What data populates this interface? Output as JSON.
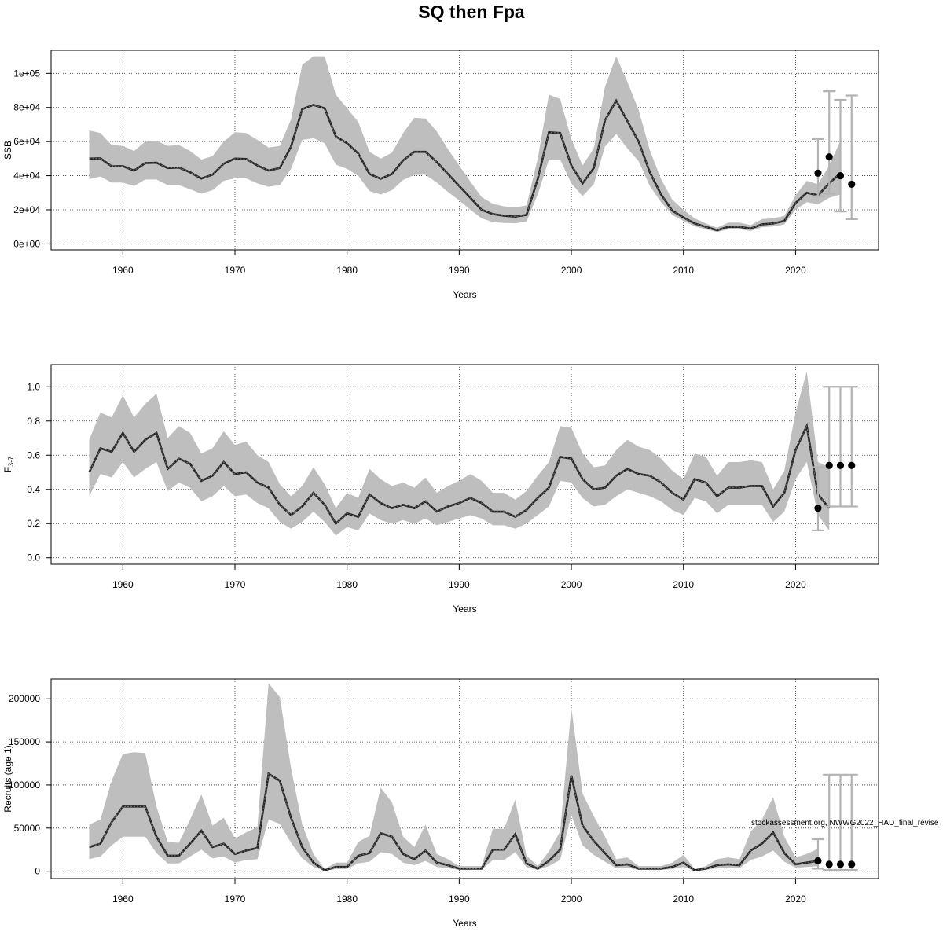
{
  "title": "SQ then Fpa",
  "watermark": "stockassessment.org, NWWG2022_HAD_final_revise",
  "colors": {
    "band": "#bebebe",
    "line": "#222222",
    "whisker": "#b3b3b3",
    "point": "#000000",
    "grid": "#333333"
  },
  "chart_data": [
    {
      "type": "line",
      "id": "ssb",
      "title": "SQ then Fpa",
      "xlabel": "Years",
      "ylabel": "SSB",
      "xlim": [
        1953.6,
        2027.4
      ],
      "ylim": [
        -3500,
        113500
      ],
      "xticks": [
        1960,
        1970,
        1980,
        1990,
        2000,
        2010,
        2020
      ],
      "yticks": [
        0,
        20000,
        40000,
        60000,
        80000,
        100000
      ],
      "ytick_labels": [
        "0e+00",
        "2e+04",
        "4e+04",
        "6e+04",
        "8e+04",
        "1e+05"
      ],
      "years_start": 1957,
      "estimate": [
        50000,
        50200,
        45500,
        45600,
        43000,
        47400,
        47600,
        44500,
        44800,
        42000,
        38300,
        40600,
        47000,
        50000,
        49800,
        46000,
        43000,
        44500,
        57000,
        79000,
        81500,
        79500,
        63000,
        59000,
        53000,
        41000,
        38200,
        41000,
        49000,
        54000,
        54000,
        48000,
        41000,
        34000,
        27000,
        20000,
        17500,
        16500,
        16000,
        17000,
        38000,
        65500,
        65000,
        46000,
        35500,
        44500,
        72500,
        84000,
        72000,
        60000,
        42000,
        29000,
        19500,
        15500,
        12000,
        10000,
        8000,
        10000,
        10000,
        9000,
        11500,
        12000,
        13500,
        24000,
        30000,
        28500,
        35500,
        41500
      ],
      "lower": [
        38000,
        39500,
        36000,
        36000,
        34000,
        37800,
        37800,
        34500,
        34500,
        32000,
        29500,
        31500,
        37000,
        38500,
        38500,
        35500,
        33500,
        34500,
        44000,
        61000,
        62000,
        59000,
        46500,
        44000,
        40000,
        31000,
        29000,
        31500,
        37500,
        40500,
        40500,
        36000,
        30500,
        25500,
        20000,
        15000,
        12800,
        12300,
        12100,
        13000,
        29000,
        49500,
        49500,
        35500,
        28000,
        35000,
        57000,
        64500,
        56000,
        48500,
        34000,
        24500,
        17000,
        13500,
        10300,
        8600,
        7000,
        8600,
        8600,
        7600,
        9800,
        10200,
        11500,
        20000,
        24500,
        23200,
        27000,
        29000
      ],
      "upper": [
        66500,
        65000,
        58000,
        57500,
        54500,
        60000,
        60500,
        57500,
        58000,
        54500,
        49500,
        51500,
        60000,
        65500,
        65000,
        61000,
        56500,
        57500,
        73000,
        105000,
        110000,
        110000,
        87500,
        79500,
        71500,
        54000,
        50000,
        53500,
        65000,
        74000,
        73500,
        66000,
        55500,
        46000,
        36500,
        27500,
        23500,
        22000,
        21500,
        22500,
        50000,
        87500,
        85000,
        61500,
        46000,
        56000,
        92000,
        110000,
        95000,
        78500,
        55000,
        38000,
        26000,
        20000,
        15000,
        12000,
        9500,
        12500,
        12500,
        11000,
        14500,
        15000,
        16500,
        28500,
        37000,
        35000,
        46000,
        60500
      ],
      "projection": [
        {
          "year": 2022,
          "value": 41500,
          "lower": 28000,
          "upper": 61500
        },
        {
          "year": 2023,
          "value": 51000,
          "lower": 29500,
          "upper": 89500
        },
        {
          "year": 2024,
          "value": 40000,
          "lower": 19000,
          "upper": 84500
        },
        {
          "year": 2025,
          "value": 35000,
          "lower": 14500,
          "upper": 87000
        }
      ]
    },
    {
      "type": "line",
      "id": "fbar",
      "xlabel": "Years",
      "ylabel": "F",
      "ylabel_sub": "3-7",
      "xlim": [
        1953.6,
        2027.4
      ],
      "ylim": [
        -0.038,
        1.13
      ],
      "xticks": [
        1960,
        1970,
        1980,
        1990,
        2000,
        2010,
        2020
      ],
      "yticks": [
        0.0,
        0.2,
        0.4,
        0.6,
        0.8,
        1.0
      ],
      "ytick_labels": [
        "0.0",
        "0.2",
        "0.4",
        "0.6",
        "0.8",
        "1.0"
      ],
      "years_start": 1957,
      "estimate": [
        0.5,
        0.64,
        0.62,
        0.73,
        0.62,
        0.69,
        0.73,
        0.52,
        0.58,
        0.55,
        0.45,
        0.48,
        0.56,
        0.49,
        0.5,
        0.44,
        0.41,
        0.31,
        0.25,
        0.3,
        0.38,
        0.31,
        0.2,
        0.26,
        0.24,
        0.37,
        0.32,
        0.29,
        0.31,
        0.29,
        0.33,
        0.27,
        0.3,
        0.32,
        0.35,
        0.32,
        0.27,
        0.27,
        0.24,
        0.28,
        0.35,
        0.41,
        0.59,
        0.58,
        0.46,
        0.4,
        0.41,
        0.48,
        0.52,
        0.49,
        0.48,
        0.44,
        0.38,
        0.34,
        0.46,
        0.44,
        0.36,
        0.41,
        0.41,
        0.42,
        0.42,
        0.3,
        0.38,
        0.63,
        0.77,
        0.37,
        0.29
      ],
      "lower": [
        0.36,
        0.49,
        0.47,
        0.56,
        0.47,
        0.52,
        0.56,
        0.39,
        0.44,
        0.41,
        0.33,
        0.36,
        0.42,
        0.36,
        0.37,
        0.32,
        0.29,
        0.21,
        0.17,
        0.21,
        0.27,
        0.21,
        0.13,
        0.18,
        0.16,
        0.26,
        0.22,
        0.2,
        0.22,
        0.2,
        0.23,
        0.19,
        0.21,
        0.23,
        0.25,
        0.23,
        0.19,
        0.19,
        0.17,
        0.2,
        0.25,
        0.3,
        0.45,
        0.44,
        0.35,
        0.3,
        0.31,
        0.36,
        0.4,
        0.38,
        0.36,
        0.33,
        0.28,
        0.25,
        0.35,
        0.33,
        0.26,
        0.31,
        0.31,
        0.31,
        0.31,
        0.21,
        0.27,
        0.46,
        0.56,
        0.25,
        0.16
      ],
      "upper": [
        0.69,
        0.85,
        0.82,
        0.95,
        0.82,
        0.9,
        0.96,
        0.7,
        0.77,
        0.73,
        0.61,
        0.64,
        0.74,
        0.66,
        0.68,
        0.6,
        0.56,
        0.43,
        0.36,
        0.42,
        0.53,
        0.43,
        0.29,
        0.38,
        0.35,
        0.52,
        0.46,
        0.42,
        0.44,
        0.41,
        0.47,
        0.38,
        0.42,
        0.45,
        0.49,
        0.45,
        0.38,
        0.38,
        0.34,
        0.39,
        0.48,
        0.56,
        0.77,
        0.76,
        0.61,
        0.53,
        0.54,
        0.63,
        0.69,
        0.65,
        0.63,
        0.58,
        0.51,
        0.46,
        0.61,
        0.59,
        0.48,
        0.56,
        0.56,
        0.57,
        0.56,
        0.4,
        0.51,
        0.85,
        1.09,
        0.56,
        0.53
      ],
      "projection": [
        {
          "year": 2022,
          "value": 0.29,
          "lower": 0.16,
          "upper": 0.53
        },
        {
          "year": 2023,
          "value": 0.54,
          "lower": 0.3,
          "upper": 1.0
        },
        {
          "year": 2024,
          "value": 0.54,
          "lower": 0.3,
          "upper": 1.0
        },
        {
          "year": 2025,
          "value": 0.54,
          "lower": 0.3,
          "upper": 1.0
        }
      ]
    },
    {
      "type": "line",
      "id": "recruits",
      "xlabel": "Years",
      "ylabel": "Recruits (age 1)",
      "xlim": [
        1953.6,
        2027.4
      ],
      "ylim": [
        -8500,
        223000
      ],
      "xticks": [
        1960,
        1970,
        1980,
        1990,
        2000,
        2010,
        2020
      ],
      "yticks": [
        0,
        50000,
        100000,
        150000,
        200000
      ],
      "ytick_labels": [
        "0",
        "50000",
        "100000",
        "150000",
        "200000"
      ],
      "years_start": 1957,
      "estimate": [
        28000,
        32000,
        57000,
        75000,
        75000,
        75000,
        40000,
        18000,
        18000,
        32000,
        47000,
        28000,
        32000,
        20000,
        24000,
        27000,
        113000,
        105000,
        62000,
        28000,
        10000,
        1000,
        5000,
        5000,
        18000,
        21000,
        44000,
        40000,
        20000,
        14000,
        24000,
        10000,
        7000,
        3000,
        3000,
        3000,
        25000,
        25000,
        43000,
        9000,
        3000,
        12000,
        25000,
        111000,
        53000,
        35000,
        21000,
        7000,
        8000,
        3000,
        3000,
        3000,
        5000,
        10000,
        1000,
        3000,
        7000,
        8000,
        7000,
        24000,
        32000,
        45000,
        21000,
        8000,
        10000,
        12000
      ],
      "lower": [
        14000,
        17000,
        30000,
        40000,
        40000,
        40000,
        21000,
        9000,
        9000,
        17000,
        25000,
        15000,
        17000,
        10000,
        13000,
        14000,
        60000,
        55000,
        33000,
        15000,
        5000,
        500,
        2500,
        2500,
        9000,
        11000,
        22000,
        20000,
        10000,
        7000,
        12000,
        5000,
        3500,
        1500,
        1500,
        1500,
        13000,
        13000,
        22000,
        4500,
        1500,
        6000,
        13000,
        65000,
        30000,
        19000,
        11000,
        3500,
        4000,
        1500,
        1500,
        1500,
        2500,
        5000,
        500,
        1500,
        3500,
        4000,
        3500,
        13000,
        17000,
        24000,
        11000,
        4000,
        5000,
        6000
      ],
      "upper": [
        54000,
        60000,
        105000,
        136000,
        138000,
        137000,
        75000,
        34000,
        33000,
        60000,
        89000,
        53000,
        62000,
        38000,
        45000,
        51000,
        218000,
        202000,
        120000,
        54000,
        20000,
        2500,
        10000,
        10000,
        34000,
        41000,
        97000,
        80000,
        40000,
        28000,
        54000,
        20000,
        14000,
        6000,
        6000,
        6000,
        49000,
        49000,
        83000,
        18000,
        6000,
        23000,
        46000,
        190000,
        90000,
        64000,
        40000,
        14000,
        16000,
        6000,
        6000,
        6000,
        10000,
        19000,
        2500,
        6000,
        14000,
        16000,
        14000,
        46000,
        60000,
        86000,
        40000,
        16000,
        20000,
        26000
      ],
      "projection": [
        {
          "year": 2022,
          "value": 12000,
          "lower": 3000,
          "upper": 37000
        },
        {
          "year": 2023,
          "value": 8000,
          "lower": 1500,
          "upper": 112000
        },
        {
          "year": 2024,
          "value": 8000,
          "lower": 1500,
          "upper": 112000
        },
        {
          "year": 2025,
          "value": 8000,
          "lower": 1500,
          "upper": 112000
        }
      ]
    }
  ]
}
